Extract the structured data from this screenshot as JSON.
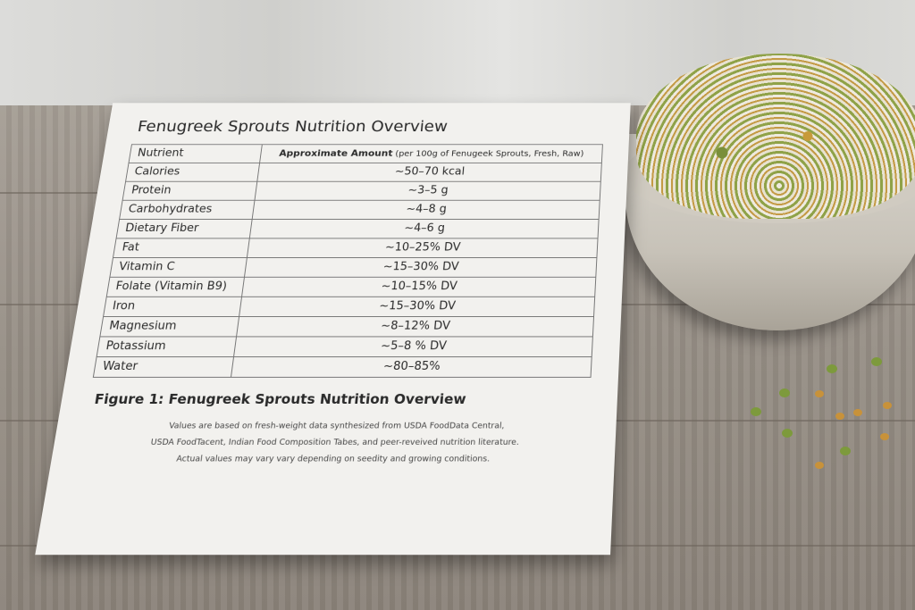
{
  "document": {
    "title": "Fenugreek Sprouts Nutrition Overview",
    "table": {
      "headers": {
        "nutrient": "Nutrient",
        "amount_bold": "Approximate Amount",
        "amount_rest": "(per 100g of Fenugeek Sprouts, Fresh, Raw)"
      },
      "rows": [
        {
          "nutrient": "Calories",
          "amount": "~50–70 kcal"
        },
        {
          "nutrient": "Protein",
          "amount": "~3–5 g"
        },
        {
          "nutrient": "Carbohydrates",
          "amount": "~4–8 g"
        },
        {
          "nutrient": "Dietary Fiber",
          "amount": "~4–6 g"
        },
        {
          "nutrient": "Fat",
          "amount": "~10–25% DV"
        },
        {
          "nutrient": "Vitamin C",
          "amount": "~15–30% DV"
        },
        {
          "nutrient": "Folate (Vitamin B9)",
          "amount": "~10–15% DV"
        },
        {
          "nutrient": "Iron",
          "amount": "~15–30% DV"
        },
        {
          "nutrient": "Magnesium",
          "amount": "~8–12% DV"
        },
        {
          "nutrient": "Potassium",
          "amount": "~5–8 % DV"
        },
        {
          "nutrient": "Water",
          "amount": "~80–85%"
        }
      ]
    },
    "figure_caption": "Figure 1: Fenugreek Sprouts Nutrition Overview",
    "note_lines": [
      "Values are based on fresh-weight data synthesized from USDA FoodData Central,",
      "USDA FoodTacent, Indian Food Composition Tabes, and peer-reveived nutrition literature.",
      "Actual values may vary vary depending on seedity and growing conditions."
    ]
  }
}
